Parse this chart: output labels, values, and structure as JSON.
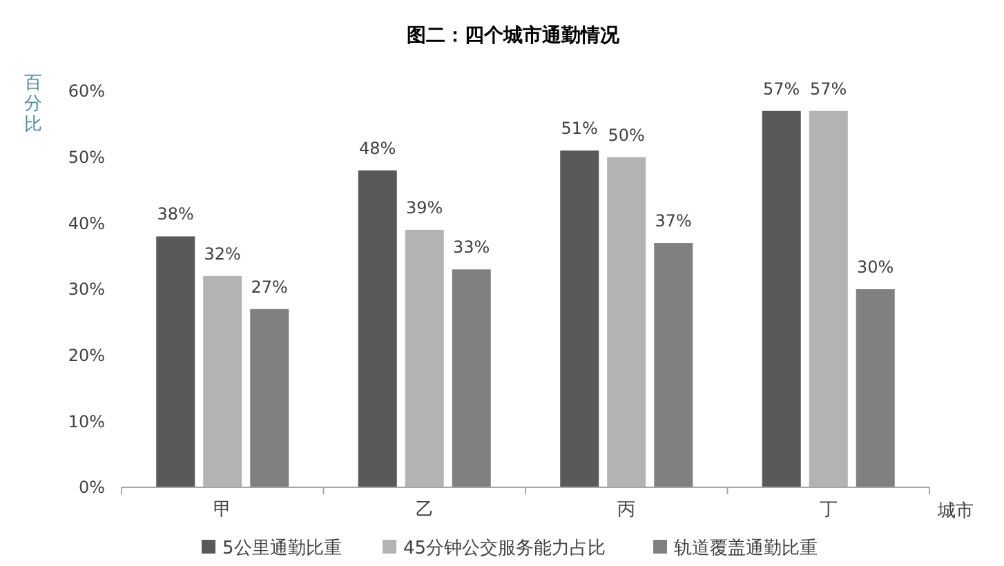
{
  "chart_data": {
    "type": "bar",
    "title": "图二：四个城市通勤情况",
    "xlabel": "城市",
    "ylabel": "百分比",
    "categories": [
      "甲",
      "乙",
      "丙",
      "丁"
    ],
    "series": [
      {
        "name": "5公里通勤比重",
        "color": "#595959",
        "values": [
          38,
          48,
          51,
          57
        ],
        "value_labels": [
          "38%",
          "48%",
          "51%",
          "57%"
        ]
      },
      {
        "name": "45分钟公交服务能力占比",
        "color": "#b3b3b3",
        "values": [
          32,
          39,
          50,
          57
        ],
        "value_labels": [
          "32%",
          "39%",
          "50%",
          "57%"
        ]
      },
      {
        "name": "轨道覆盖通勤比重",
        "color": "#808080",
        "values": [
          27,
          33,
          37,
          30
        ],
        "value_labels": [
          "27%",
          "33%",
          "37%",
          "30%"
        ]
      }
    ],
    "ylim": [
      0,
      60
    ],
    "yticks": [
      {
        "value": 0,
        "label": "0%"
      },
      {
        "value": 10,
        "label": "10%"
      },
      {
        "value": 20,
        "label": "20%"
      },
      {
        "value": 30,
        "label": "30%"
      },
      {
        "value": 40,
        "label": "40%"
      },
      {
        "value": 50,
        "label": "50%"
      },
      {
        "value": 60,
        "label": "60%"
      }
    ],
    "grid": false,
    "legend": "bottom"
  }
}
